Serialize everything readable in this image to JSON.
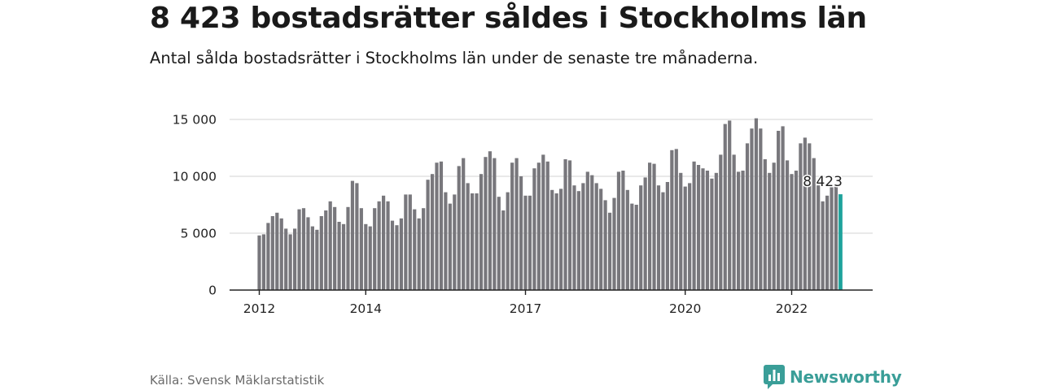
{
  "header": {
    "title": "8 423 bostadsrätter såldes i Stockholms län",
    "subtitle": "Antal sålda bostadsrätter i Stockholms län under de senaste tre månaderna."
  },
  "footer": {
    "source": "Källa: Svensk Mäklarstatistik",
    "brand": "Newsworthy"
  },
  "colors": {
    "bar": "#78777c",
    "highlight": "#1fa39c",
    "grid": "#dcdcdc",
    "axis": "#222222",
    "brand": "#3a9e98"
  },
  "icons": {
    "brand_logo": "bar-chart-speech-bubble-icon"
  },
  "chart_data": {
    "type": "bar",
    "title": "8 423 bostadsrätter såldes i Stockholms län",
    "subtitle": "Antal sålda bostadsrätter i Stockholms län under de senaste tre månaderna.",
    "xlabel": "",
    "ylabel": "",
    "ylim": [
      0,
      15000
    ],
    "yticks": [
      0,
      5000,
      10000,
      15000
    ],
    "ytick_labels": [
      "0",
      "5 000",
      "10 000",
      "15 000"
    ],
    "xticks": [
      {
        "month_index": 0,
        "label": "2012"
      },
      {
        "month_index": 24,
        "label": "2014"
      },
      {
        "month_index": 60,
        "label": "2017"
      },
      {
        "month_index": 96,
        "label": "2020"
      },
      {
        "month_index": 120,
        "label": "2022"
      }
    ],
    "grid": "horizontal",
    "highlight_label": "8 423",
    "series": [
      {
        "values": [
          4800,
          4900,
          5900,
          6500,
          6800,
          6300,
          5400,
          4900,
          5400,
          7100,
          7200,
          6400,
          5600,
          5300,
          6500,
          7000,
          7800,
          7300,
          6000,
          5800,
          7300,
          9600,
          9400,
          7200,
          5800,
          5600,
          7200,
          7800,
          8300,
          7800,
          6100,
          5700,
          6300,
          8400,
          8400,
          7100,
          6300,
          7200,
          9700,
          10200,
          11200,
          11300,
          8600,
          7600,
          8400,
          10900,
          11600,
          9400,
          8500,
          8500,
          10200,
          11700,
          12200,
          11600,
          8200,
          7000,
          8600,
          11200,
          11600,
          10000,
          8300,
          8300,
          10700,
          11200,
          11900,
          11300,
          8800,
          8500,
          8900,
          11500,
          11400,
          9200,
          8700,
          9400,
          10400,
          10100,
          9400,
          8900,
          7900,
          6800,
          8100,
          10400,
          10500,
          8800,
          7600,
          7500,
          9200,
          9900,
          11200,
          11100,
          9200,
          8600,
          9500,
          12300,
          12400,
          10300,
          9100,
          9400,
          11300,
          11000,
          10700,
          10500,
          9800,
          10300,
          11900,
          14600,
          14900,
          11900,
          10400,
          10500,
          12900,
          14200,
          15100,
          14200,
          11500,
          10300,
          11200,
          14000,
          14400,
          11400,
          10200,
          10500,
          12900,
          13400,
          12900,
          11600,
          9200,
          7800,
          8300,
          9200,
          9100,
          8423
        ]
      }
    ]
  }
}
